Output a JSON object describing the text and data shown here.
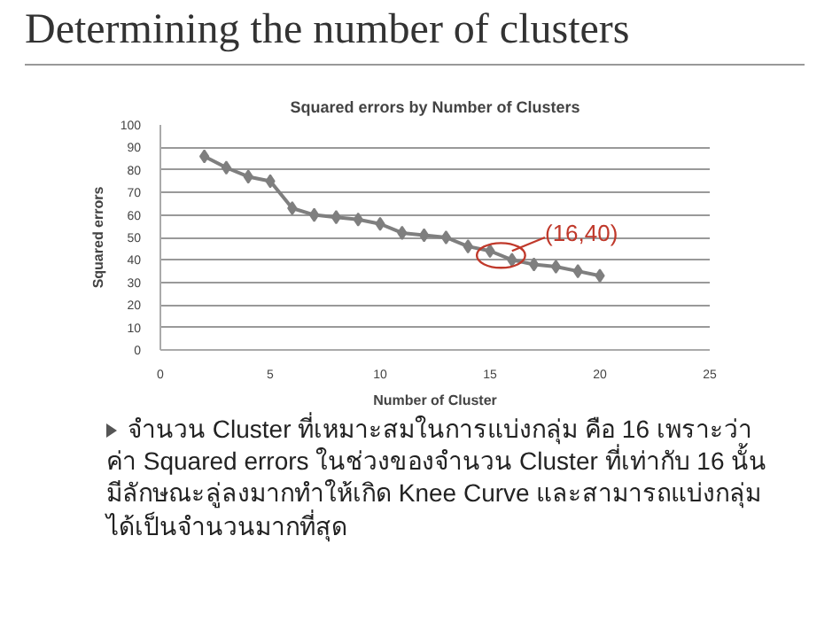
{
  "chart_data": {
    "type": "line",
    "title": "Determining the number of clusters",
    "subtitle": "Squared errors by Number of Clusters",
    "xlabel": "Number of Cluster",
    "ylabel": "Squared errors",
    "x": [
      2,
      3,
      4,
      5,
      6,
      7,
      8,
      9,
      10,
      11,
      12,
      13,
      14,
      15,
      16,
      17,
      18,
      19,
      20
    ],
    "series": [
      {
        "color": "#7f7f7f",
        "values": [
          86,
          81,
          77,
          75,
          63,
          60,
          59,
          58,
          56,
          52,
          51,
          50,
          46,
          44,
          40,
          38,
          37,
          35,
          33
        ]
      }
    ],
    "xlim": [
      0,
      25
    ],
    "xticks": [
      0,
      5,
      10,
      15,
      20,
      25
    ],
    "ylim": [
      0,
      100
    ],
    "yticks": [
      0,
      10,
      20,
      30,
      40,
      50,
      60,
      70,
      80,
      90,
      100
    ],
    "grid": "y",
    "marker": "diamond",
    "line_style": "solid",
    "annotations": [
      {
        "text": "(16,40)",
        "x": 16,
        "y": 40
      },
      "จำนวน Cluster ที่เหมาะสมในการแบ่งกลุ่ม คือ 16 เพราะว่าค่า Squared errors ในช่วงของจำนวน Cluster ที่เท่ากับ 16 นั้น มีลักษณะลู่ลงมากทำให้เกิด Knee Curve และสามารถแบ่งกลุ่มได้เป็นจำนวนมากที่สุด"
    ]
  }
}
